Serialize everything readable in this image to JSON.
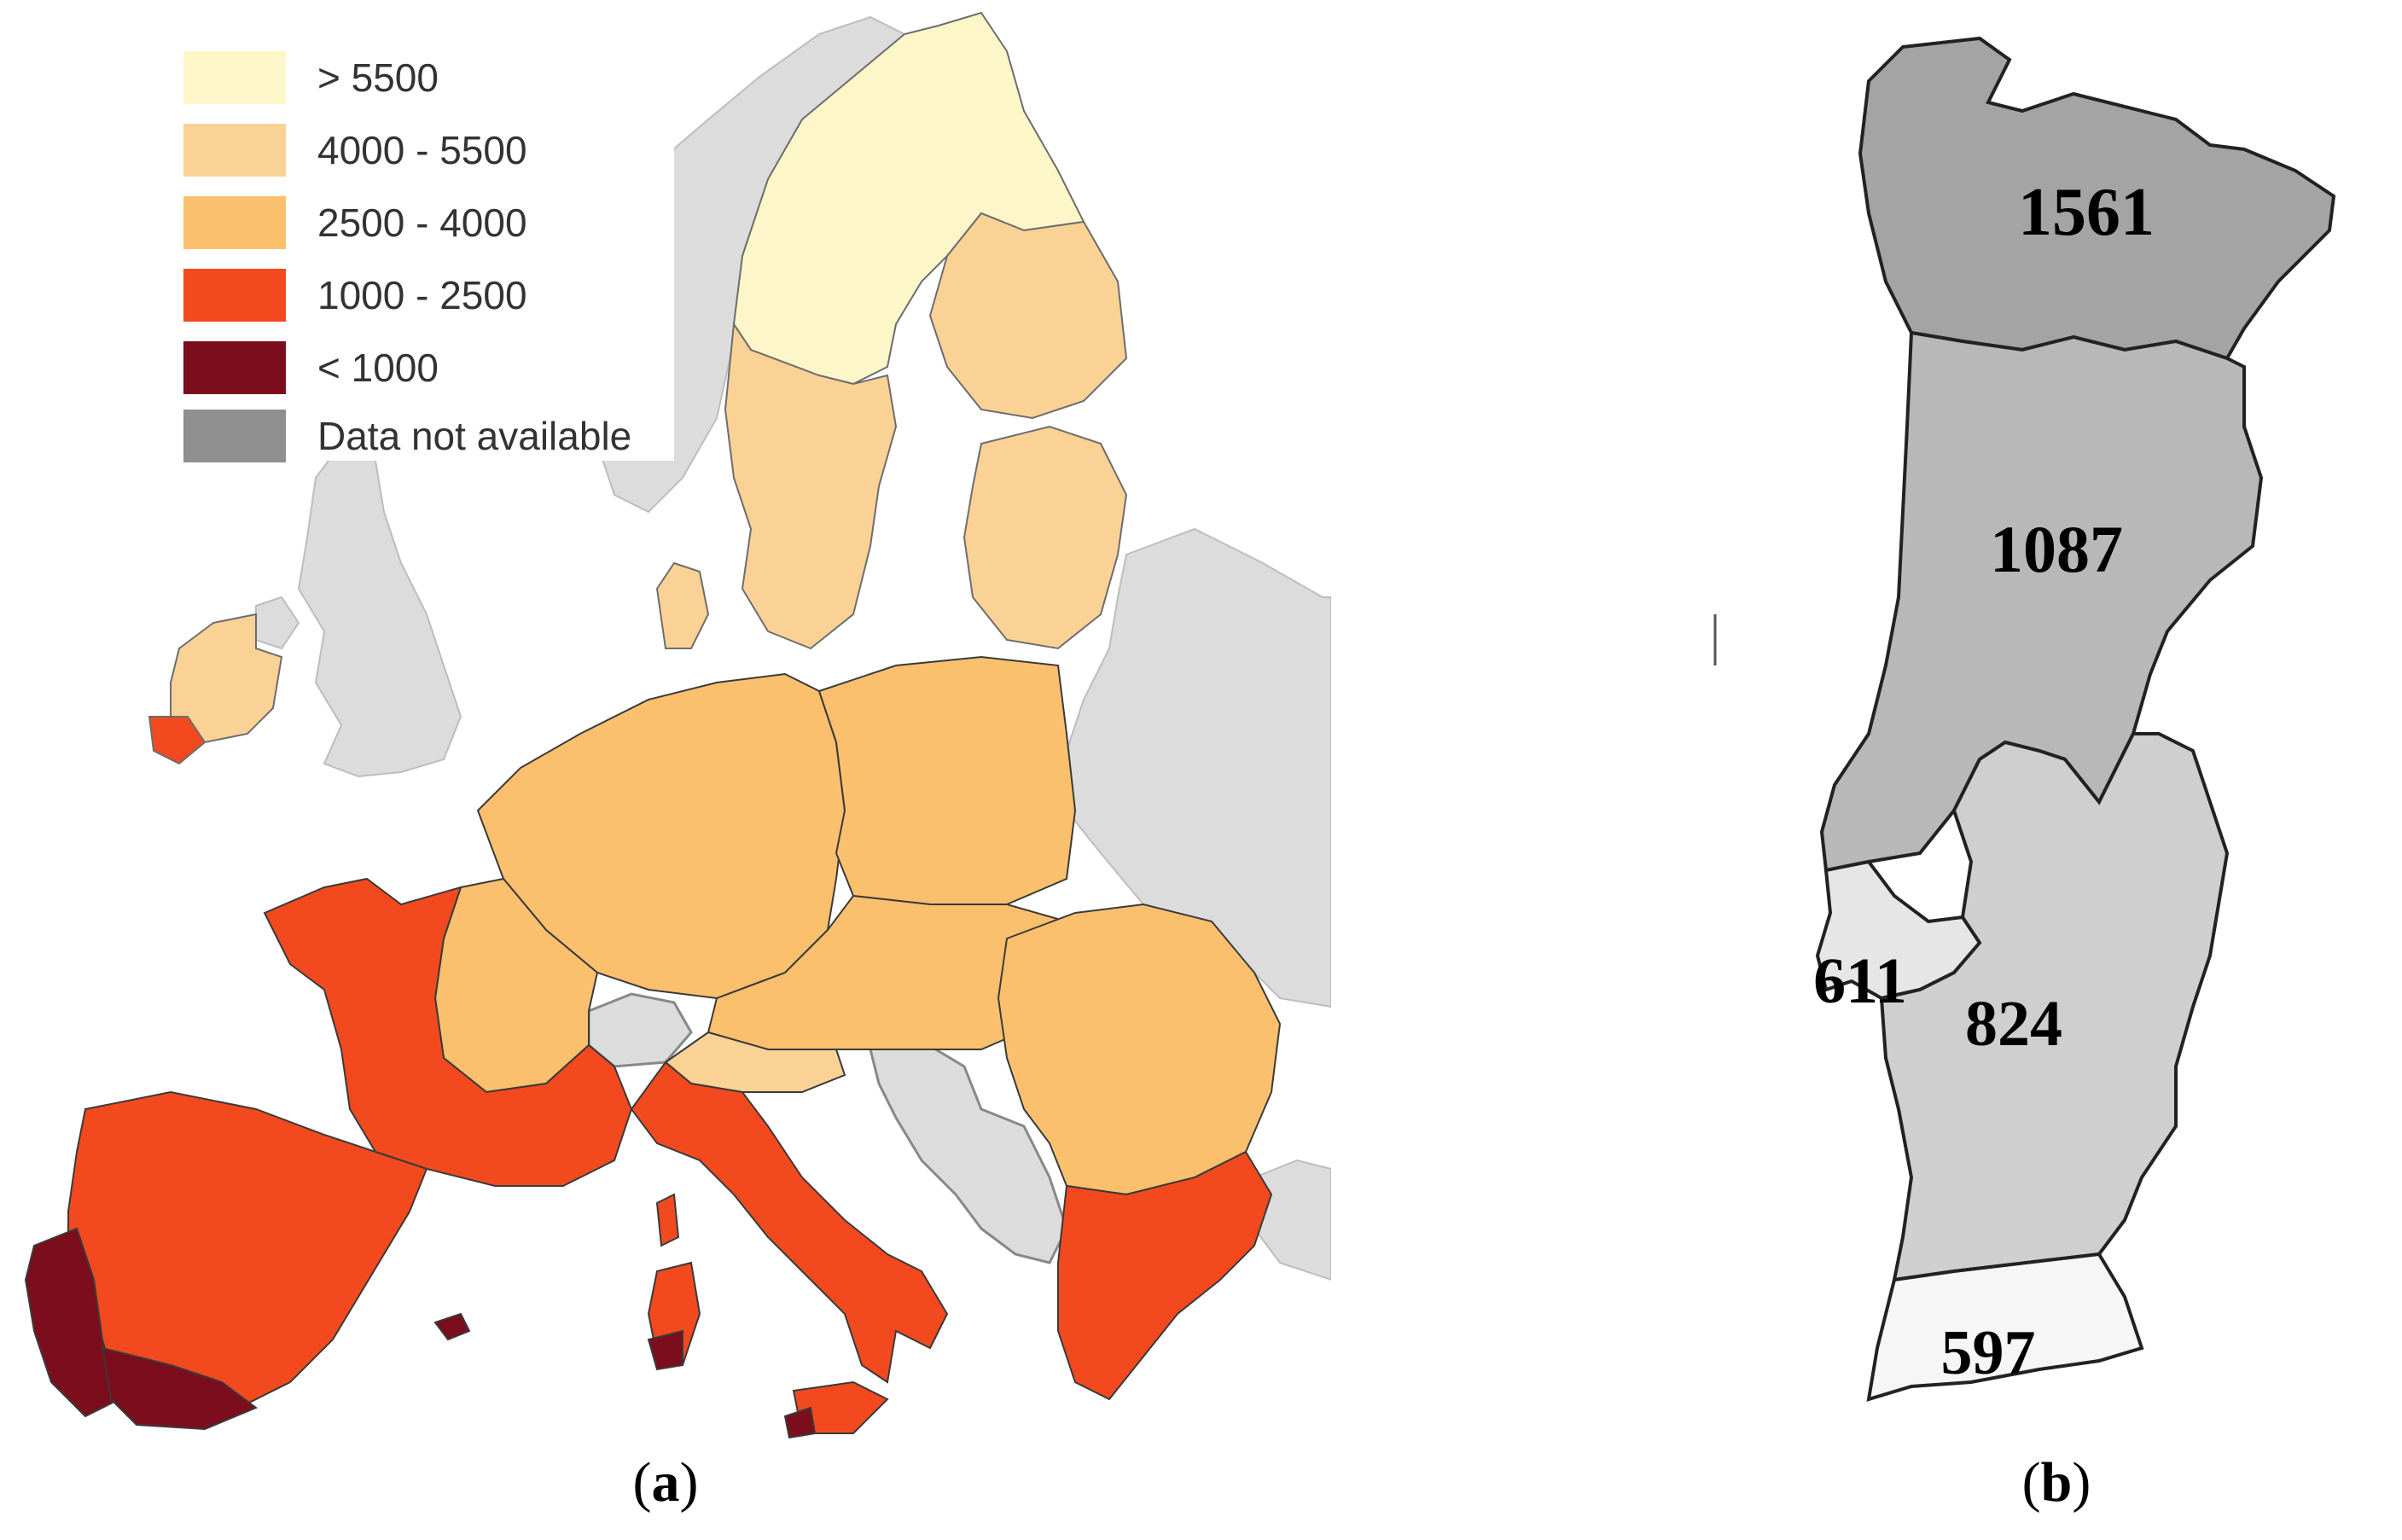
{
  "colors": {
    "gt5500": "#fdf6c8",
    "c4000_5500": "#fbd296",
    "c2500_4000": "#fbc06e",
    "c1000_2500": "#f24a1e",
    "lt1000": "#7c0d1c",
    "not_available": "#8f8f8f",
    "background_land": "#dcdcdc",
    "sea": "#ffffff",
    "pt_north": "#a4a4a4",
    "pt_centre": "#b8b8b8",
    "pt_alentejo": "#cfcfcf",
    "pt_lisbon": "#e6e6e6",
    "pt_algarve": "#f6f6f6"
  },
  "panel_a": {
    "caption_open": "(",
    "caption_letter": "a",
    "caption_close": ")",
    "legend": [
      {
        "label": "> 5500",
        "color_key": "gt5500"
      },
      {
        "label": "4000 - 5500",
        "color_key": "c4000_5500"
      },
      {
        "label": "2500 - 4000",
        "color_key": "c2500_4000"
      },
      {
        "label": "1000 - 2500",
        "color_key": "c1000_2500"
      },
      {
        "label": "< 1000",
        "color_key": "lt1000"
      },
      {
        "label": "Data not available",
        "color_key": "not_available"
      }
    ]
  },
  "panel_b": {
    "caption_open": "(",
    "caption_letter": "b",
    "caption_close": ")",
    "regions": [
      {
        "id": "north",
        "value": "1561"
      },
      {
        "id": "centre",
        "value": "1087"
      },
      {
        "id": "lisbon",
        "value": "611"
      },
      {
        "id": "alentejo",
        "value": "824"
      },
      {
        "id": "algarve",
        "value": "597"
      }
    ]
  }
}
